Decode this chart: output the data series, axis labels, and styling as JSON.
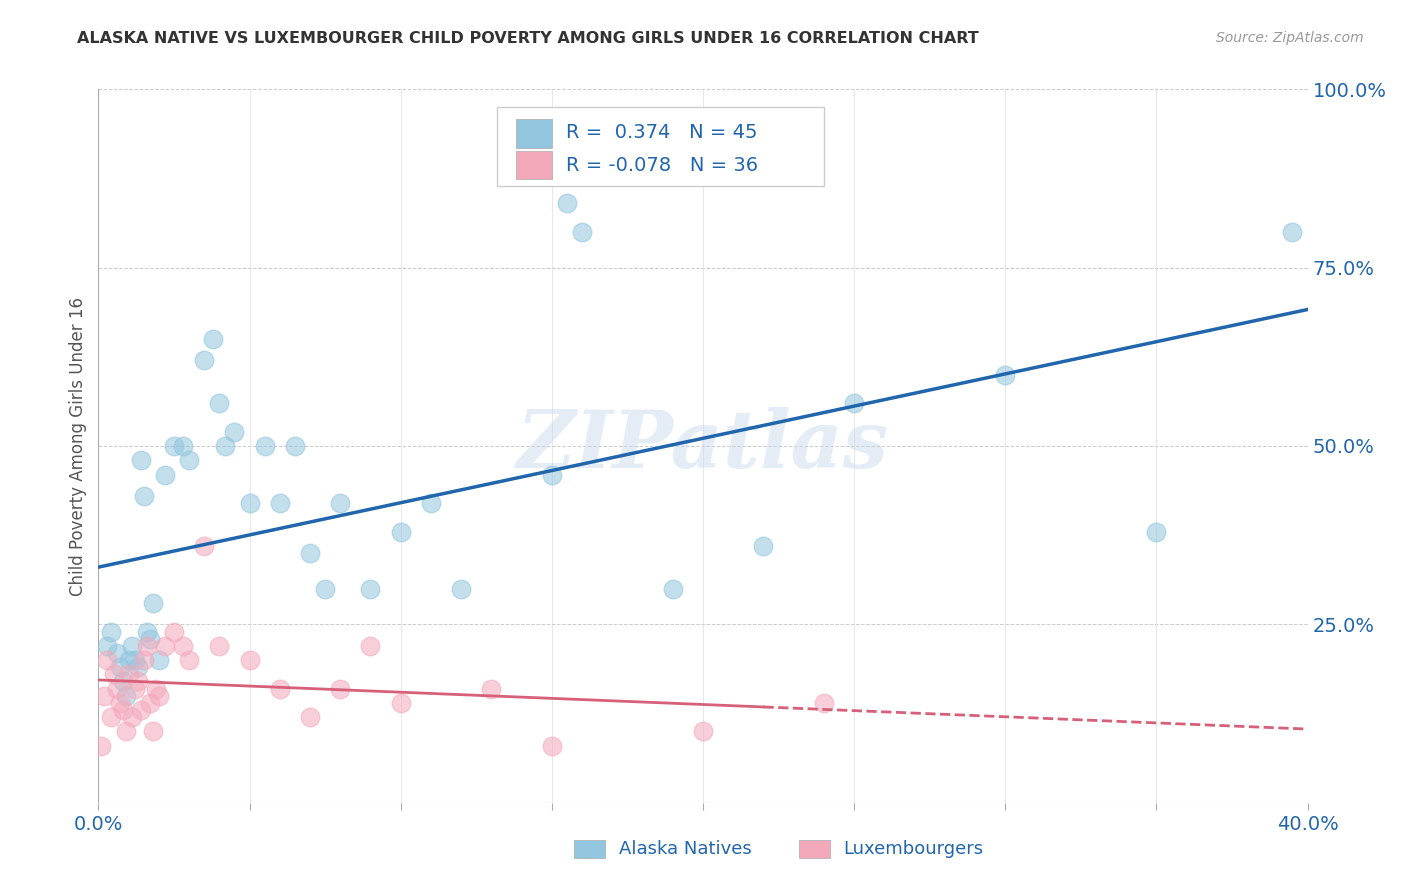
{
  "title": "ALASKA NATIVE VS LUXEMBOURGER CHILD POVERTY AMONG GIRLS UNDER 16 CORRELATION CHART",
  "source": "Source: ZipAtlas.com",
  "ylabel": "Child Poverty Among Girls Under 16",
  "xlim": [
    0.0,
    0.4
  ],
  "ylim": [
    0.0,
    1.0
  ],
  "xlabel_tick_vals": [
    0.0,
    0.05,
    0.1,
    0.15,
    0.2,
    0.25,
    0.3,
    0.35,
    0.4
  ],
  "xlabel_tick_labels": [
    "0.0%",
    "",
    "",
    "",
    "",
    "",
    "",
    "",
    "40.0%"
  ],
  "ylabel_vals": [
    0.0,
    0.25,
    0.5,
    0.75,
    1.0
  ],
  "ylabel_labels": [
    "",
    "25.0%",
    "50.0%",
    "75.0%",
    "100.0%"
  ],
  "watermark": "ZIPatlas",
  "legend_r_blue": "0.374",
  "legend_n_blue": "45",
  "legend_r_pink": "-0.078",
  "legend_n_pink": "36",
  "legend_label_blue": "Alaska Natives",
  "legend_label_pink": "Luxembourgers",
  "blue_color": "#92c5de",
  "pink_color": "#f4a9bb",
  "trendline_blue": "#2166ac",
  "trendline_pink": "#d6607a",
  "alaska_x": [
    0.003,
    0.004,
    0.006,
    0.007,
    0.008,
    0.009,
    0.01,
    0.011,
    0.012,
    0.013,
    0.014,
    0.015,
    0.016,
    0.017,
    0.018,
    0.02,
    0.022,
    0.025,
    0.028,
    0.03,
    0.035,
    0.038,
    0.04,
    0.042,
    0.045,
    0.05,
    0.055,
    0.06,
    0.065,
    0.07,
    0.075,
    0.08,
    0.09,
    0.1,
    0.11,
    0.12,
    0.15,
    0.155,
    0.16,
    0.19,
    0.22,
    0.25,
    0.3,
    0.35,
    0.395
  ],
  "alaska_y": [
    0.22,
    0.24,
    0.21,
    0.19,
    0.17,
    0.15,
    0.2,
    0.22,
    0.2,
    0.19,
    0.48,
    0.43,
    0.24,
    0.23,
    0.28,
    0.2,
    0.46,
    0.5,
    0.5,
    0.48,
    0.62,
    0.65,
    0.56,
    0.5,
    0.52,
    0.42,
    0.5,
    0.42,
    0.5,
    0.35,
    0.3,
    0.42,
    0.3,
    0.38,
    0.42,
    0.3,
    0.46,
    0.84,
    0.8,
    0.3,
    0.36,
    0.56,
    0.6,
    0.38,
    0.8
  ],
  "lux_x": [
    0.001,
    0.002,
    0.003,
    0.004,
    0.005,
    0.006,
    0.007,
    0.008,
    0.009,
    0.01,
    0.011,
    0.012,
    0.013,
    0.014,
    0.015,
    0.016,
    0.017,
    0.018,
    0.019,
    0.02,
    0.022,
    0.025,
    0.028,
    0.03,
    0.035,
    0.04,
    0.05,
    0.06,
    0.07,
    0.08,
    0.09,
    0.1,
    0.13,
    0.15,
    0.2,
    0.24
  ],
  "lux_y": [
    0.08,
    0.15,
    0.2,
    0.12,
    0.18,
    0.16,
    0.14,
    0.13,
    0.1,
    0.18,
    0.12,
    0.16,
    0.17,
    0.13,
    0.2,
    0.22,
    0.14,
    0.1,
    0.16,
    0.15,
    0.22,
    0.24,
    0.22,
    0.2,
    0.36,
    0.22,
    0.2,
    0.16,
    0.12,
    0.16,
    0.22,
    0.14,
    0.16,
    0.08,
    0.1,
    0.14
  ],
  "background_color": "#ffffff",
  "grid_color": "#cccccc"
}
